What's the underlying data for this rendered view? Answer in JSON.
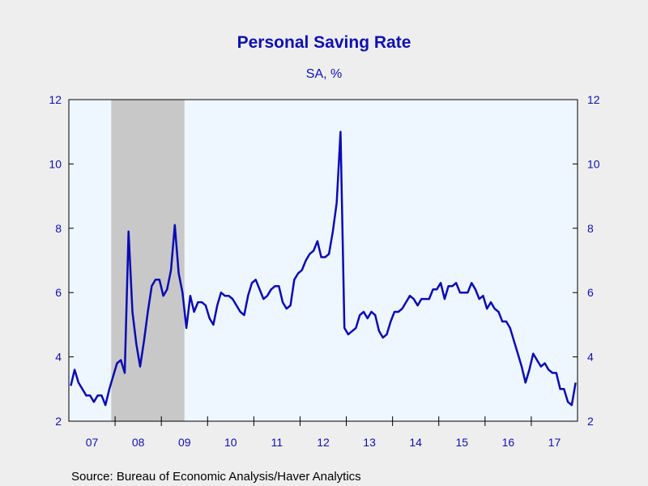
{
  "chart_data": {
    "type": "line",
    "title": "Personal Saving Rate",
    "subtitle": "SA, %",
    "source": "Source:  Bureau of Economic Analysis/Haver Analytics",
    "ylim": [
      2,
      12
    ],
    "yticks": [
      2,
      4,
      6,
      8,
      10,
      12
    ],
    "x_tick_labels": [
      "07",
      "08",
      "09",
      "10",
      "11",
      "12",
      "13",
      "14",
      "15",
      "16",
      "17"
    ],
    "x_start": "2007-01",
    "x_end": "2017-12",
    "recession_shading": {
      "start": "2007-12",
      "end": "2009-06"
    },
    "grid": false,
    "colors": {
      "line": "#0a0ab4",
      "text": "#1010b0",
      "plot_bg": "#eef6ff",
      "recession": "#c8c8c8",
      "page_bg": "#eeeeee"
    },
    "series": [
      {
        "x": [
          "2007-01",
          "2007-02",
          "2007-03",
          "2007-04",
          "2007-05",
          "2007-06",
          "2007-07",
          "2007-08",
          "2007-09",
          "2007-10",
          "2007-11",
          "2007-12",
          "2008-01",
          "2008-02",
          "2008-03",
          "2008-04",
          "2008-05",
          "2008-06",
          "2008-07",
          "2008-08",
          "2008-09",
          "2008-10",
          "2008-11",
          "2008-12",
          "2009-01",
          "2009-02",
          "2009-03",
          "2009-04",
          "2009-05",
          "2009-06",
          "2009-07",
          "2009-08",
          "2009-09",
          "2009-10",
          "2009-11",
          "2009-12",
          "2010-01",
          "2010-02",
          "2010-03",
          "2010-04",
          "2010-05",
          "2010-06",
          "2010-07",
          "2010-08",
          "2010-09",
          "2010-10",
          "2010-11",
          "2010-12",
          "2011-01",
          "2011-02",
          "2011-03",
          "2011-04",
          "2011-05",
          "2011-06",
          "2011-07",
          "2011-08",
          "2011-09",
          "2011-10",
          "2011-11",
          "2011-12",
          "2012-01",
          "2012-02",
          "2012-03",
          "2012-04",
          "2012-05",
          "2012-06",
          "2012-07",
          "2012-08",
          "2012-09",
          "2012-10",
          "2012-11",
          "2012-12",
          "2013-01",
          "2013-02",
          "2013-03",
          "2013-04",
          "2013-05",
          "2013-06",
          "2013-07",
          "2013-08",
          "2013-09",
          "2013-10",
          "2013-11",
          "2013-12",
          "2014-01",
          "2014-02",
          "2014-03",
          "2014-04",
          "2014-05",
          "2014-06",
          "2014-07",
          "2014-08",
          "2014-09",
          "2014-10",
          "2014-11",
          "2014-12",
          "2015-01",
          "2015-02",
          "2015-03",
          "2015-04",
          "2015-05",
          "2015-06",
          "2015-07",
          "2015-08",
          "2015-09",
          "2015-10",
          "2015-11",
          "2015-12",
          "2016-01",
          "2016-02",
          "2016-03",
          "2016-04",
          "2016-05",
          "2016-06",
          "2016-07",
          "2016-08",
          "2016-09",
          "2016-10",
          "2016-11",
          "2016-12",
          "2017-01",
          "2017-02",
          "2017-03",
          "2017-04",
          "2017-05",
          "2017-06",
          "2017-07",
          "2017-08",
          "2017-09",
          "2017-10",
          "2017-11",
          "2017-12"
        ],
        "values": [
          3.1,
          3.6,
          3.2,
          3.0,
          2.8,
          2.8,
          2.6,
          2.8,
          2.8,
          2.5,
          3.0,
          3.4,
          3.8,
          3.9,
          3.5,
          7.9,
          5.4,
          4.4,
          3.7,
          4.5,
          5.4,
          6.2,
          6.4,
          6.4,
          5.9,
          6.1,
          6.7,
          8.1,
          6.6,
          6.0,
          4.9,
          5.9,
          5.4,
          5.7,
          5.7,
          5.6,
          5.2,
          5.0,
          5.6,
          6.0,
          5.9,
          5.9,
          5.8,
          5.6,
          5.4,
          5.3,
          5.9,
          6.3,
          6.4,
          6.1,
          5.8,
          5.9,
          6.1,
          6.2,
          6.2,
          5.7,
          5.5,
          5.6,
          6.4,
          6.6,
          6.7,
          7.0,
          7.2,
          7.3,
          7.6,
          7.1,
          7.1,
          7.2,
          7.9,
          8.8,
          11.0,
          4.9,
          4.7,
          4.8,
          4.9,
          5.3,
          5.4,
          5.2,
          5.4,
          5.3,
          4.8,
          4.6,
          4.7,
          5.1,
          5.4,
          5.4,
          5.5,
          5.7,
          5.9,
          5.8,
          5.6,
          5.8,
          5.8,
          5.8,
          6.1,
          6.1,
          6.3,
          5.8,
          6.2,
          6.2,
          6.3,
          6.0,
          6.0,
          6.0,
          6.3,
          6.1,
          5.8,
          5.9,
          5.5,
          5.7,
          5.5,
          5.4,
          5.1,
          5.1,
          4.9,
          4.5,
          4.1,
          3.7,
          3.2,
          3.6,
          4.1,
          3.9,
          3.7,
          3.8,
          3.6,
          3.5,
          3.5,
          3.0,
          3.0,
          2.6,
          2.5,
          3.2
        ]
      }
    ]
  }
}
